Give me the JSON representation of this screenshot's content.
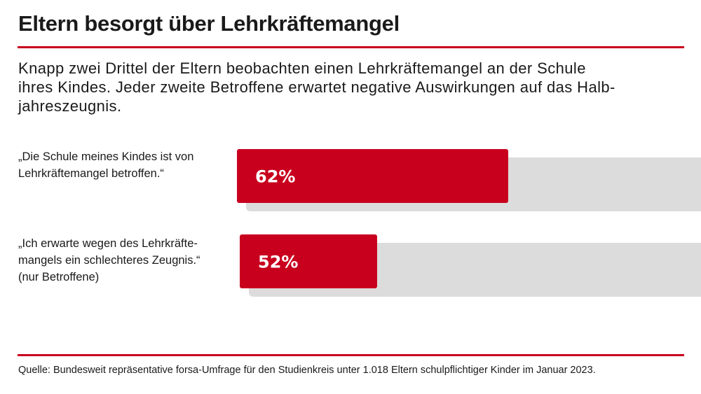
{
  "header": {
    "title": "Eltern besorgt über Lehrkräftemangel",
    "subtitle_lines": [
      "Knapp zwei Drittel der Eltern beobachten einen Lehrkräftemangel an der Schule",
      "ihres Kindes. Jeder zweite Betroffene erwartet negative Auswirkungen auf das Halb-",
      "jahreszeugnis."
    ]
  },
  "rows": [
    {
      "label_lines": [
        "„Die Schule meines Kindes ist von",
        "Lehrkräftemangel betroffen.“"
      ],
      "value_label": "62%"
    },
    {
      "label_lines": [
        "„Ich erwarte wegen des Lehrkräfte-",
        "mangels ein schlechteres Zeugnis.“",
        "(nur Betroffene)"
      ],
      "value_label": "52%"
    }
  ],
  "footer": {
    "source": "Quelle: Bundesweit repräsentative forsa-Umfrage für den Studienkreis unter 1.018 Eltern schulpflichtiger Kinder im Januar 2023."
  },
  "colors": {
    "accent": "#c8001e",
    "track": "#dcdcdc",
    "text": "#1a1a1a"
  },
  "chart_data": {
    "type": "bar",
    "orientation": "horizontal",
    "categories": [
      "„Die Schule meines Kindes ist von Lehrkräftemangel betroffen.“",
      "„Ich erwarte wegen des Lehrkräftemangels ein schlechteres Zeugnis.“ (nur Betroffene)"
    ],
    "values": [
      62,
      52
    ],
    "unit": "%",
    "xlim": [
      0,
      100
    ]
  }
}
